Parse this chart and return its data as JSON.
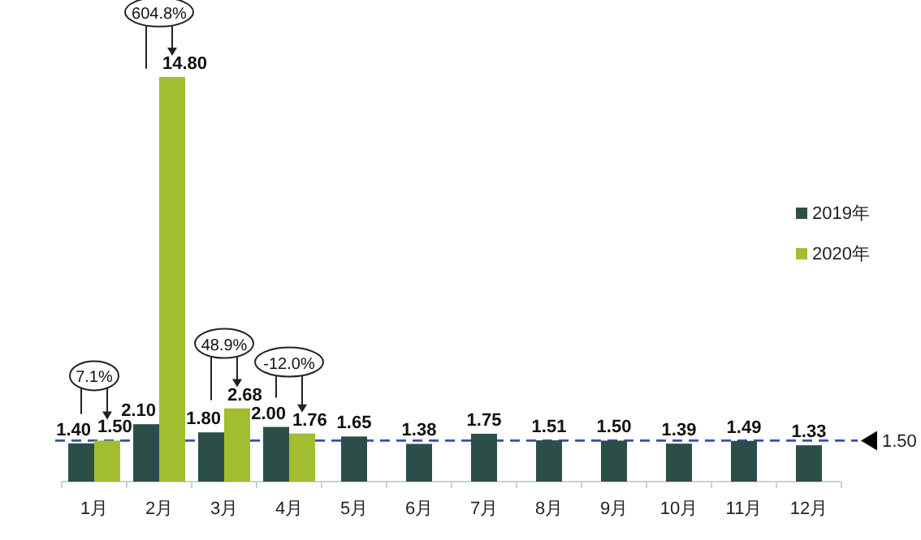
{
  "chart_data": {
    "type": "bar",
    "categories": [
      "1月",
      "2月",
      "3月",
      "4月",
      "5月",
      "6月",
      "7月",
      "8月",
      "9月",
      "10月",
      "11月",
      "12月"
    ],
    "series": [
      {
        "name": "2019年",
        "color": "#2b4f48",
        "values": [
          1.4,
          2.1,
          1.8,
          2.0,
          1.65,
          1.38,
          1.75,
          1.51,
          1.5,
          1.39,
          1.49,
          1.33
        ],
        "value_labels": [
          "1.40",
          "2.10",
          "1.80",
          "2.00",
          "1.65",
          "1.38",
          "1.75",
          "1.51",
          "1.50",
          "1.39",
          "1.49",
          "1.33"
        ]
      },
      {
        "name": "2020年",
        "color": "#a2bd2f",
        "values": [
          1.5,
          14.8,
          2.68,
          1.76,
          null,
          null,
          null,
          null,
          null,
          null,
          null,
          null
        ],
        "value_labels": [
          "1.50",
          "14.80",
          "2.68",
          "1.76",
          null,
          null,
          null,
          null,
          null,
          null,
          null,
          null
        ]
      }
    ],
    "legend": "right",
    "tick_labels": "x",
    "ref_lines": [
      {
        "axis": "y",
        "value": 1.5,
        "label": "1.50",
        "color": "#3a4bb8",
        "line_style": "dashed"
      }
    ],
    "annotations": [
      "7.1%",
      "604.8%",
      "48.9%",
      "-12.0%"
    ]
  }
}
